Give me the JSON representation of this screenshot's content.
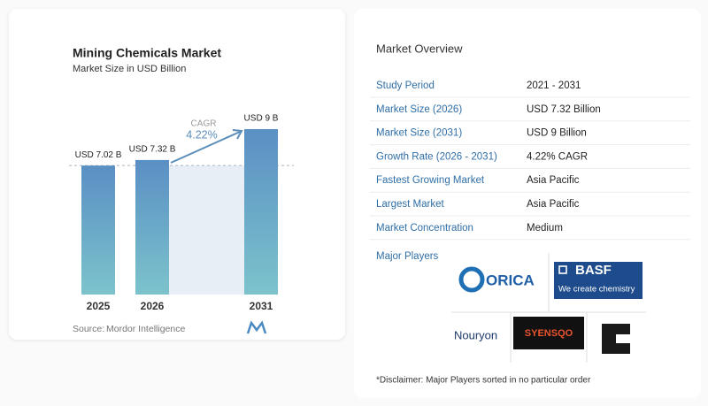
{
  "chart_data": {
    "type": "bar",
    "title": "Mining Chemicals Market",
    "subtitle": "Market Size in USD Billion",
    "categories": [
      "2025",
      "2026",
      "2031"
    ],
    "values": [
      7.02,
      7.32,
      9
    ],
    "value_labels": [
      "USD 7.02 B",
      "USD 7.32 B",
      "USD 9 B"
    ],
    "annotation": {
      "label": "CAGR",
      "value": "4.22%"
    },
    "source": {
      "label": "Source:",
      "name": "Mordor Intelligence"
    }
  },
  "overview": {
    "title": "Market Overview",
    "rows": [
      [
        "Study Period",
        "2021 - 2031"
      ],
      [
        "Market Size (2026)",
        "USD 7.32 Billion"
      ],
      [
        "Market Size (2031)",
        "USD 9 Billion"
      ],
      [
        "Growth Rate (2026 - 2031)",
        "4.22% CAGR"
      ],
      [
        "Fastest Growing Market",
        "Asia Pacific"
      ],
      [
        "Largest Market",
        "Asia Pacific"
      ],
      [
        "Market Concentration",
        "Medium"
      ]
    ],
    "players_title": "Major Players",
    "players": [
      "ORICA",
      "BASF",
      "We create chemistry",
      "Nouryon",
      "SYENSQO"
    ],
    "disclaimer": "*Disclaimer: Major Players sorted in no particular order"
  }
}
